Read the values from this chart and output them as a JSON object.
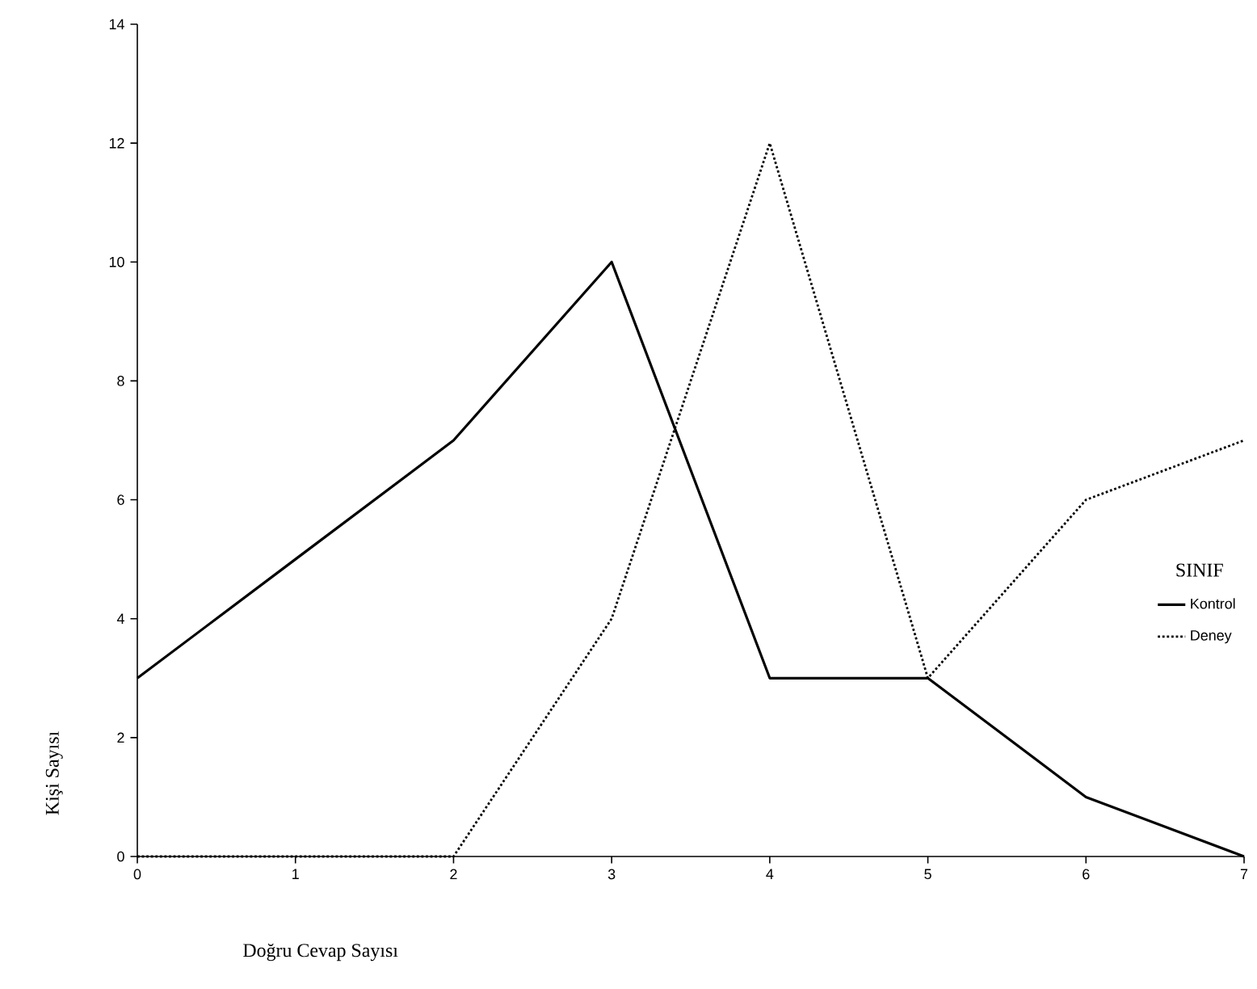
{
  "chart_data": {
    "type": "line",
    "xlabel": "Doğru Cevap Sayısı",
    "ylabel": "Kişi Sayısı",
    "legend_title": "SINIF",
    "legend": "right",
    "x": [
      0,
      1,
      2,
      3,
      4,
      5,
      6,
      7
    ],
    "xlim": [
      0,
      7
    ],
    "xticks": [
      0,
      1,
      2,
      3,
      4,
      5,
      6,
      7
    ],
    "ylim": [
      0,
      14
    ],
    "yticks": [
      0,
      2,
      4,
      6,
      8,
      10,
      12,
      14
    ],
    "grid": false,
    "marker": "none",
    "series": [
      {
        "name": "Kontrol",
        "color": "#000000",
        "line_style": "solid",
        "values": [
          3,
          5,
          7,
          10,
          3,
          3,
          1,
          0
        ]
      },
      {
        "name": "Deney",
        "color": "#000000",
        "line_style": "dotted",
        "values": [
          0,
          0,
          0,
          4,
          12,
          3,
          6,
          7
        ]
      }
    ]
  }
}
